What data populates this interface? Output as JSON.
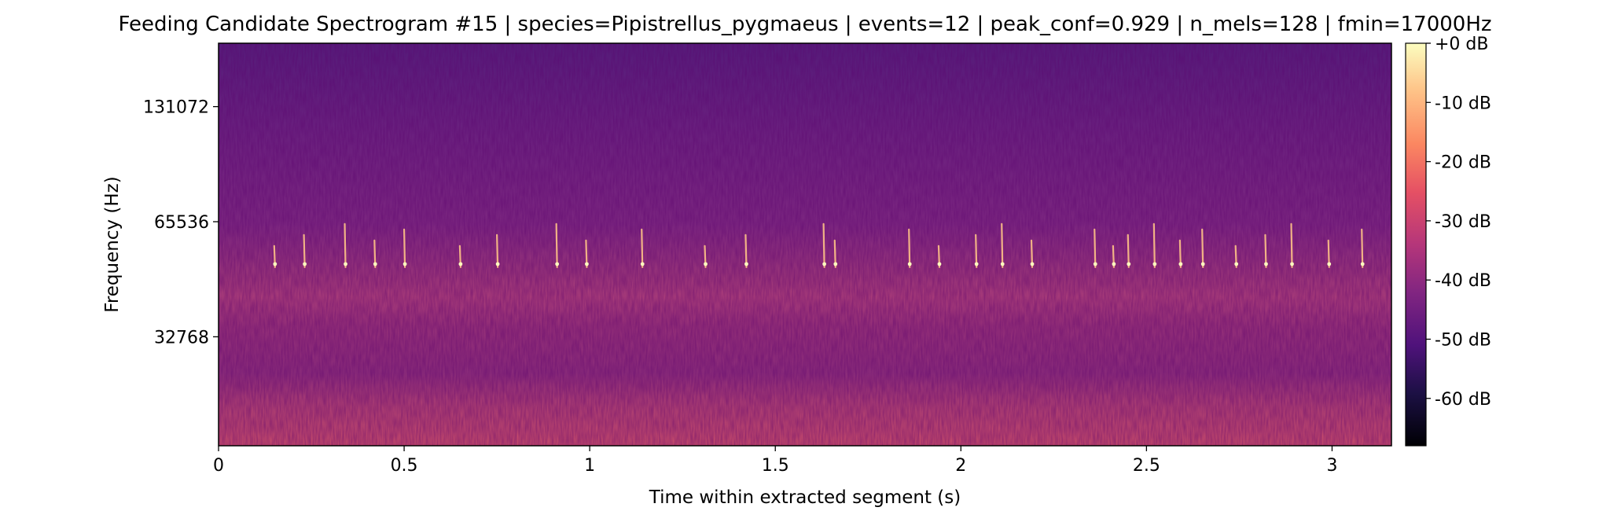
{
  "chart_data": {
    "type": "heatmap",
    "title": "Feeding Candidate Spectrogram #15 | species=Pipistrellus_pygmaeus | events=12 | peak_conf=0.929 | n_mels=128 | fmin=17000Hz",
    "xlabel": "Time within extracted segment (s)",
    "ylabel": "Frequency (Hz)",
    "xlim": [
      0,
      3.16
    ],
    "ylim": [
      17000,
      192000
    ],
    "yscale": "log2",
    "x_ticks": [
      0,
      0.5,
      1,
      1.5,
      2,
      2.5,
      3
    ],
    "x_tick_labels": [
      "0",
      "0.5",
      "1",
      "1.5",
      "2",
      "2.5",
      "3"
    ],
    "y_ticks": [
      32768,
      65536,
      131072
    ],
    "y_tick_labels": [
      "32768",
      "65536",
      "131072"
    ],
    "colormap": "magma",
    "colorbar": {
      "range_db": [
        -68,
        0
      ],
      "ticks": [
        0,
        -10,
        -20,
        -30,
        -40,
        -50,
        -60
      ],
      "tick_labels": [
        "+0 dB",
        "-10 dB",
        "-20 dB",
        "-30 dB",
        "-40 dB",
        "-50 dB",
        "-60 dB"
      ]
    },
    "call_times_s": [
      0.15,
      0.23,
      0.34,
      0.42,
      0.5,
      0.65,
      0.75,
      0.91,
      0.99,
      1.14,
      1.31,
      1.42,
      1.63,
      1.66,
      1.86,
      1.94,
      2.04,
      2.11,
      2.19,
      2.36,
      2.41,
      2.45,
      2.52,
      2.59,
      2.65,
      2.74,
      2.82,
      2.89,
      2.99,
      3.08
    ],
    "call_freq_hz": 52000
  }
}
